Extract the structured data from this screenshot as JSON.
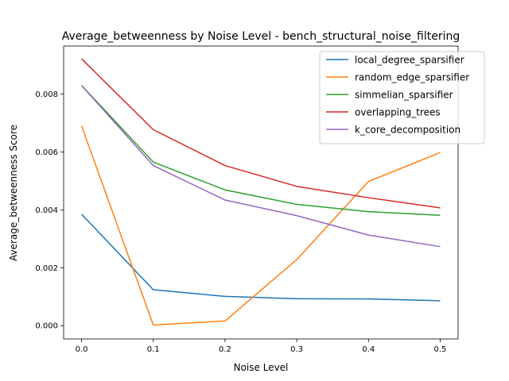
{
  "chart_data": {
    "type": "line",
    "title": "Average_betweenness by Noise Level - bench_structural_noise_filtering",
    "xlabel": "Noise Level",
    "ylabel": "Average_betweenness Score",
    "x": [
      0.0,
      0.1,
      0.2,
      0.3,
      0.4,
      0.5
    ],
    "xticks": [
      "0.0",
      "0.1",
      "0.2",
      "0.3",
      "0.4",
      "0.5"
    ],
    "yticks": [
      "0.000",
      "0.002",
      "0.004",
      "0.006",
      "0.008"
    ],
    "xlim": [
      -0.025,
      0.525
    ],
    "ylim": [
      -0.00046,
      0.00966
    ],
    "grid": false,
    "legend_position": "top-right",
    "series": [
      {
        "name": "local_degree_sparsifier",
        "color": "#1f77b4",
        "values": [
          0.00385,
          0.00124,
          0.00101,
          0.00093,
          0.00092,
          0.00086
        ]
      },
      {
        "name": "random_edge_sparsifier",
        "color": "#ff7f0e",
        "values": [
          0.0069,
          2e-05,
          0.00016,
          0.00228,
          0.00498,
          0.00598
        ]
      },
      {
        "name": "simmelian_sparsifier",
        "color": "#2ca02c",
        "values": [
          0.0083,
          0.00565,
          0.00469,
          0.00419,
          0.00394,
          0.00381
        ]
      },
      {
        "name": "overlapping_trees",
        "color": "#d62728",
        "values": [
          0.00922,
          0.00677,
          0.00553,
          0.00481,
          0.00442,
          0.00407
        ]
      },
      {
        "name": "k_core_decomposition",
        "color": "#9467bd",
        "values": [
          0.0083,
          0.00553,
          0.00434,
          0.0038,
          0.00313,
          0.00273
        ]
      }
    ]
  }
}
